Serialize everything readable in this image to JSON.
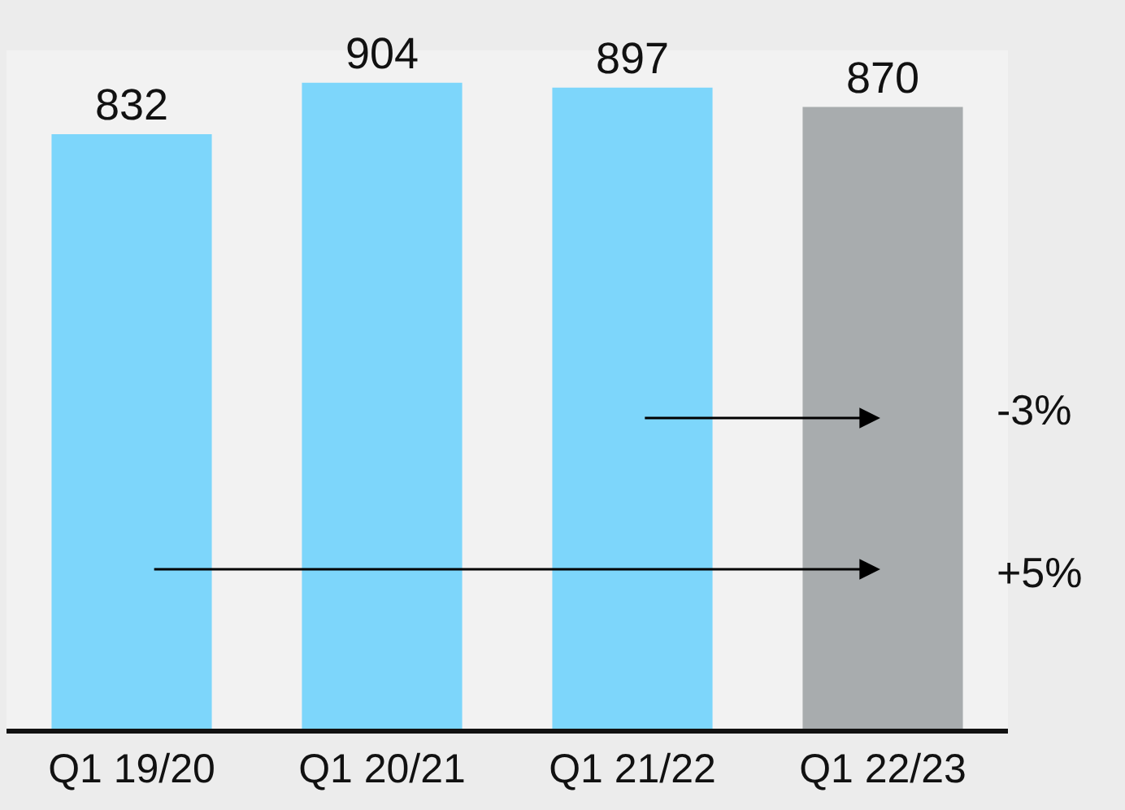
{
  "chart_data": {
    "type": "bar",
    "categories": [
      "Q1 19/20",
      "Q1 20/21",
      "Q1 21/22",
      "Q1 22/23"
    ],
    "values": [
      832,
      904,
      897,
      870
    ],
    "colors": [
      "#7dd6fb",
      "#7dd6fb",
      "#7dd6fb",
      "#a8acae"
    ],
    "data_labels": true,
    "annotations": [
      "-3%",
      "+5%"
    ]
  }
}
